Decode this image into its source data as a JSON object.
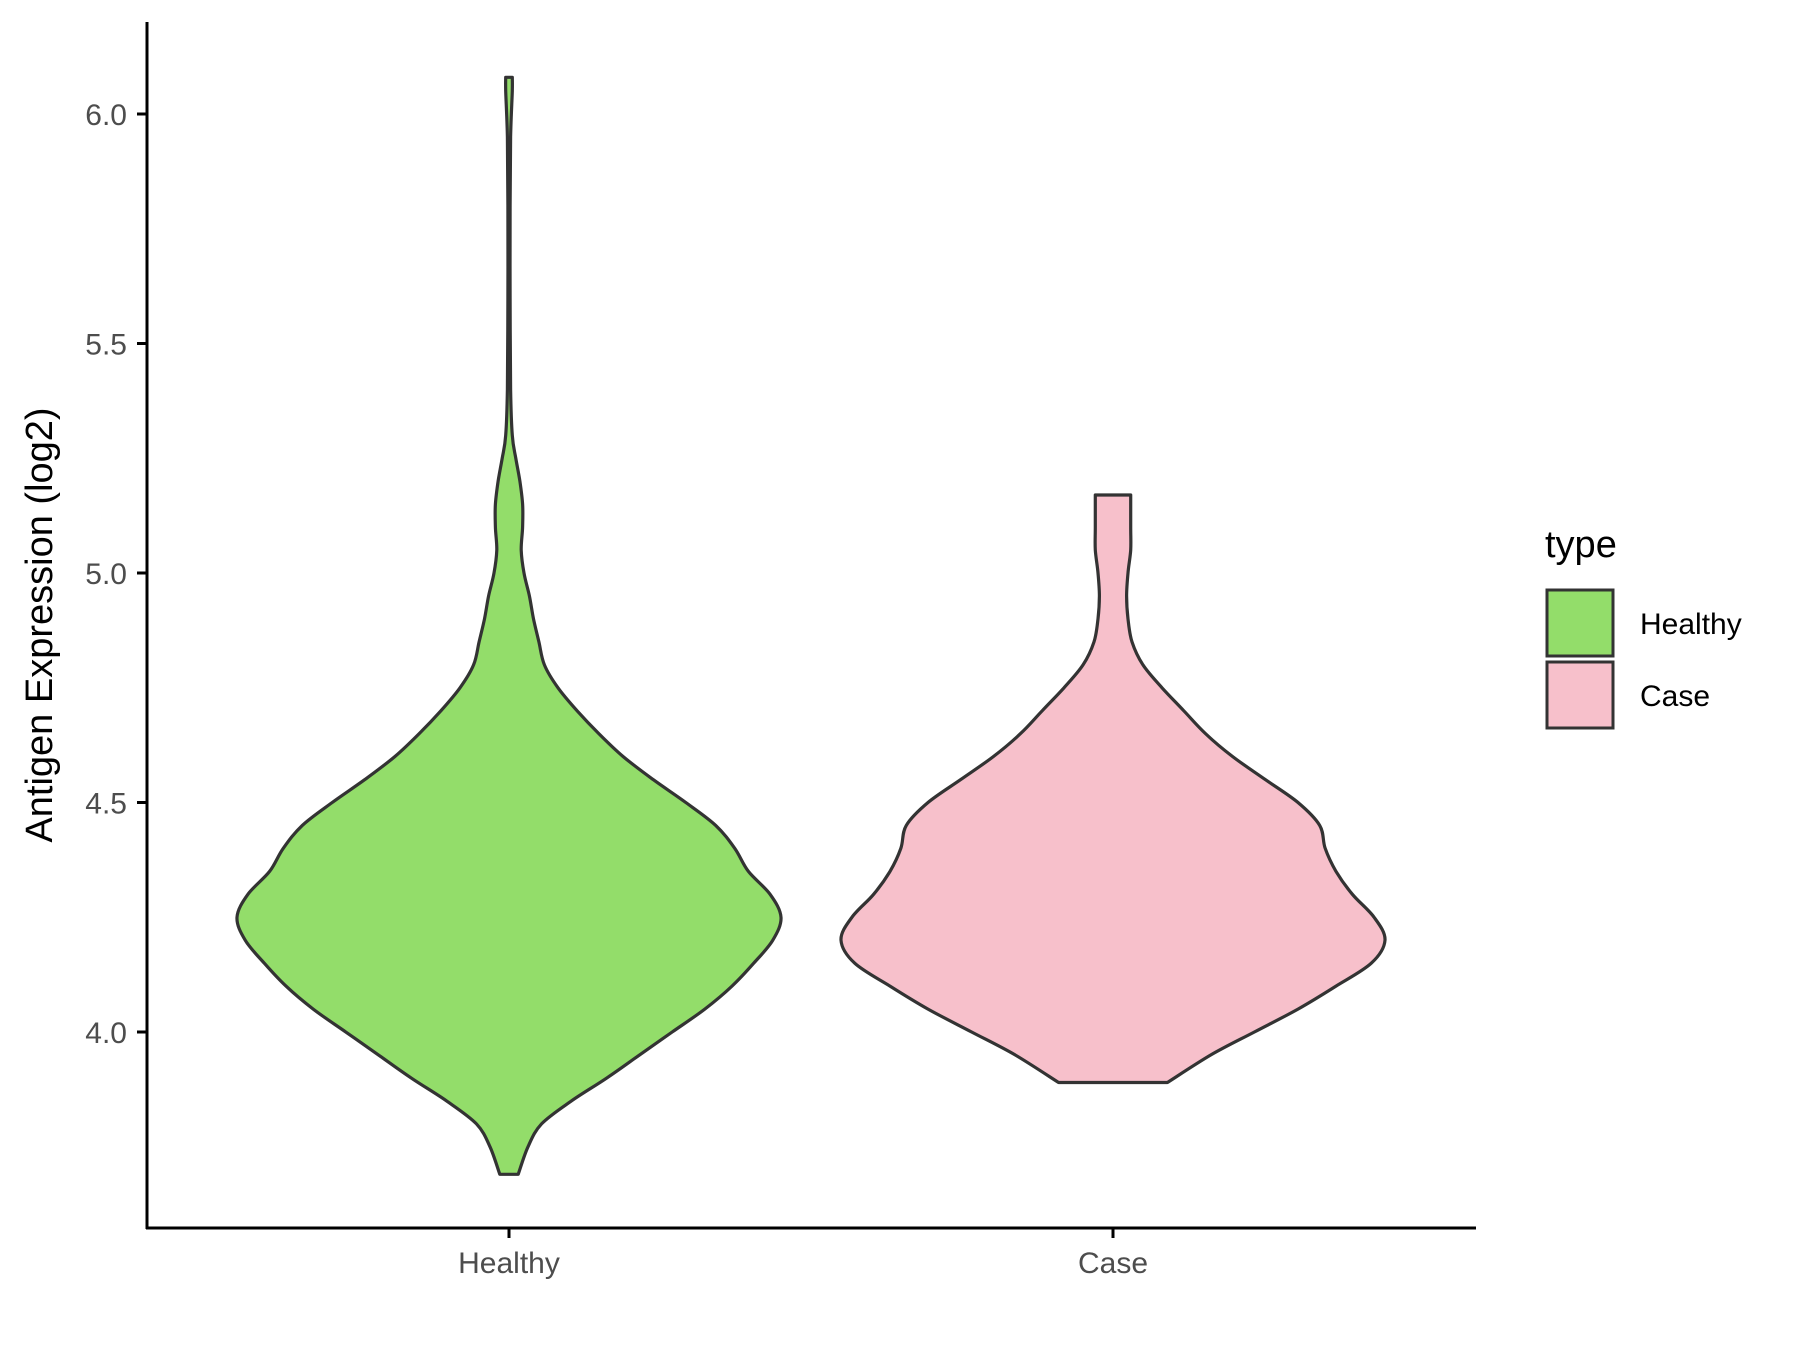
{
  "chart_data": {
    "type": "violin",
    "title": "",
    "xlabel": "",
    "ylabel": "Antigen Expression (log2)",
    "categories": [
      "Healthy",
      "Case"
    ],
    "ylim": [
      3.64,
      6.2
    ],
    "yticks": [
      4.0,
      4.5,
      5.0,
      5.5,
      6.0
    ],
    "ytick_labels": [
      "4.0",
      "4.5",
      "5.0",
      "5.5",
      "6.0"
    ],
    "grid": false,
    "legend": {
      "title": "type",
      "position": "right",
      "entries": [
        "Healthy",
        "Case"
      ]
    },
    "series": [
      {
        "name": "Healthy",
        "color": "#93DD6A",
        "y_min": 3.69,
        "y_max": 6.08,
        "density_profile": [
          [
            3.69,
            0.034
          ],
          [
            3.75,
            0.07
          ],
          [
            3.8,
            0.12
          ],
          [
            3.85,
            0.23
          ],
          [
            3.9,
            0.36
          ],
          [
            3.95,
            0.48
          ],
          [
            4.0,
            0.6
          ],
          [
            4.05,
            0.72
          ],
          [
            4.1,
            0.82
          ],
          [
            4.15,
            0.9
          ],
          [
            4.2,
            0.97
          ],
          [
            4.25,
            1.0
          ],
          [
            4.3,
            0.96
          ],
          [
            4.35,
            0.88
          ],
          [
            4.4,
            0.83
          ],
          [
            4.45,
            0.76
          ],
          [
            4.5,
            0.65
          ],
          [
            4.55,
            0.53
          ],
          [
            4.6,
            0.42
          ],
          [
            4.65,
            0.33
          ],
          [
            4.7,
            0.25
          ],
          [
            4.75,
            0.18
          ],
          [
            4.8,
            0.13
          ],
          [
            4.85,
            0.11
          ],
          [
            4.9,
            0.09
          ],
          [
            4.95,
            0.075
          ],
          [
            5.0,
            0.055
          ],
          [
            5.05,
            0.045
          ],
          [
            5.1,
            0.05
          ],
          [
            5.15,
            0.05
          ],
          [
            5.2,
            0.04
          ],
          [
            5.25,
            0.025
          ],
          [
            5.3,
            0.012
          ],
          [
            5.4,
            0.006
          ],
          [
            5.6,
            0.004
          ],
          [
            5.8,
            0.004
          ],
          [
            5.95,
            0.006
          ],
          [
            6.05,
            0.012
          ],
          [
            6.08,
            0.012
          ]
        ]
      },
      {
        "name": "Case",
        "color": "#F7C0CB",
        "y_min": 3.89,
        "y_max": 5.17,
        "density_profile": [
          [
            3.89,
            0.2
          ],
          [
            3.95,
            0.36
          ],
          [
            4.0,
            0.52
          ],
          [
            4.05,
            0.68
          ],
          [
            4.1,
            0.82
          ],
          [
            4.15,
            0.95
          ],
          [
            4.2,
            1.0
          ],
          [
            4.25,
            0.96
          ],
          [
            4.3,
            0.88
          ],
          [
            4.35,
            0.82
          ],
          [
            4.4,
            0.78
          ],
          [
            4.45,
            0.76
          ],
          [
            4.5,
            0.68
          ],
          [
            4.55,
            0.56
          ],
          [
            4.6,
            0.44
          ],
          [
            4.65,
            0.34
          ],
          [
            4.7,
            0.26
          ],
          [
            4.75,
            0.18
          ],
          [
            4.8,
            0.11
          ],
          [
            4.85,
            0.07
          ],
          [
            4.9,
            0.055
          ],
          [
            4.95,
            0.05
          ],
          [
            5.0,
            0.055
          ],
          [
            5.05,
            0.065
          ],
          [
            5.1,
            0.065
          ],
          [
            5.17,
            0.065
          ]
        ]
      }
    ]
  }
}
